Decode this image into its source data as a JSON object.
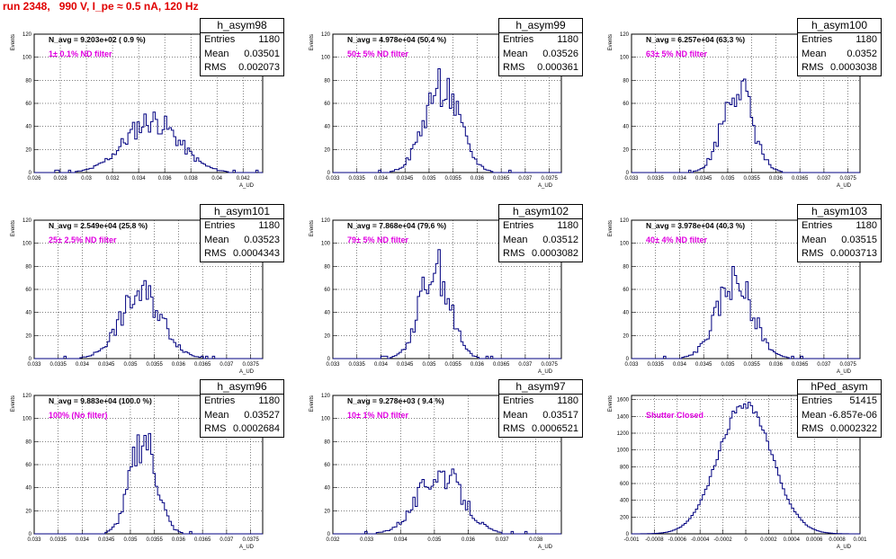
{
  "title": "run 2348,   990 V, I_pe ≈ 0.5 nA, 120 Hz",
  "colors": {
    "histogram": "#000080",
    "filter_label": "#e000e0",
    "title": "#e00000"
  },
  "chart_data": [
    {
      "type": "histogram",
      "hist_name": "h_asym98",
      "n_avg": "N_avg = 9.203e+02 ( 0.9 %)",
      "filter_label": "1± 0.1% ND filter",
      "stats": {
        "entries": "1180",
        "mean": "0.03501",
        "rms": "0.002073"
      },
      "xlabel": "A_UD",
      "ylabel": "Events",
      "xlim": [
        0.026,
        0.0435
      ],
      "ylim": [
        0,
        120
      ],
      "xticks": [
        "0.026",
        "0.028",
        "0.03",
        "0.032",
        "0.034",
        "0.036",
        "0.038",
        "0.04",
        "0.042"
      ],
      "xtick_values": [
        0.026,
        0.028,
        0.03,
        0.032,
        0.034,
        0.036,
        0.038,
        0.04,
        0.042
      ],
      "yticks": [
        0,
        20,
        40,
        60,
        80,
        100,
        120
      ],
      "shape": {
        "mean": 0.03501,
        "rms": 0.002073,
        "peak": 45,
        "seed": 11
      }
    },
    {
      "type": "histogram",
      "hist_name": "h_asym99",
      "n_avg": "N_avg = 4.978e+04 (50.4 %)",
      "filter_label": "50± 5% ND filter",
      "stats": {
        "entries": "1180",
        "mean": "0.03526",
        "rms": "0.000361"
      },
      "xlabel": "A_UD",
      "ylabel": "Events",
      "xlim": [
        0.033,
        0.03775
      ],
      "ylim": [
        0,
        120
      ],
      "xticks": [
        "0.033",
        "0.0335",
        "0.034",
        "0.0345",
        "0.035",
        "0.0355",
        "0.036",
        "0.0365",
        "0.037",
        "0.0375"
      ],
      "xtick_values": [
        0.033,
        0.0335,
        0.034,
        0.0345,
        0.035,
        0.0355,
        0.036,
        0.0365,
        0.037,
        0.0375
      ],
      "yticks": [
        0,
        20,
        40,
        60,
        80,
        100,
        120
      ],
      "shape": {
        "mean": 0.03526,
        "rms": 0.000361,
        "peak": 75,
        "seed": 22
      }
    },
    {
      "type": "histogram",
      "hist_name": "h_asym100",
      "n_avg": "N_avg = 6.257e+04 (63.3 %)",
      "filter_label": "63± 5% ND filter",
      "stats": {
        "entries": "1180",
        "mean": "0.0352",
        "rms": "0.0003038"
      },
      "xlabel": "A_UD",
      "ylabel": "Events",
      "xlim": [
        0.033,
        0.03775
      ],
      "ylim": [
        0,
        120
      ],
      "xticks": [
        "0.033",
        "0.0335",
        "0.034",
        "0.0345",
        "0.035",
        "0.0355",
        "0.036",
        "0.0365",
        "0.037",
        "0.0375"
      ],
      "xtick_values": [
        0.033,
        0.0335,
        0.034,
        0.0345,
        0.035,
        0.0355,
        0.036,
        0.0365,
        0.037,
        0.0375
      ],
      "yticks": [
        0,
        20,
        40,
        60,
        80,
        100,
        120
      ],
      "shape": {
        "mean": 0.0352,
        "rms": 0.0003038,
        "peak": 76,
        "seed": 33
      }
    },
    {
      "type": "histogram",
      "hist_name": "h_asym101",
      "n_avg": "N_avg = 2.549e+04 (25.8 %)",
      "filter_label": "25± 2.5% ND filter",
      "stats": {
        "entries": "1180",
        "mean": "0.03523",
        "rms": "0.0004343"
      },
      "xlabel": "A_UD",
      "ylabel": "Events",
      "xlim": [
        0.033,
        0.03775
      ],
      "ylim": [
        0,
        120
      ],
      "xticks": [
        "0.033",
        "0.0335",
        "0.034",
        "0.0345",
        "0.035",
        "0.0355",
        "0.036",
        "0.0365",
        "0.037",
        "0.0375"
      ],
      "xtick_values": [
        0.033,
        0.0335,
        0.034,
        0.0345,
        0.035,
        0.0355,
        0.036,
        0.0365,
        0.037,
        0.0375
      ],
      "yticks": [
        0,
        20,
        40,
        60,
        80,
        100,
        120
      ],
      "shape": {
        "mean": 0.03523,
        "rms": 0.0004343,
        "peak": 57,
        "seed": 44
      }
    },
    {
      "type": "histogram",
      "hist_name": "h_asym102",
      "n_avg": "N_avg = 7.868e+04 (79.6 %)",
      "filter_label": "79± 5% ND filter",
      "stats": {
        "entries": "1180",
        "mean": "0.03512",
        "rms": "0.0003082"
      },
      "xlabel": "A_UD",
      "ylabel": "Events",
      "xlim": [
        0.033,
        0.03775
      ],
      "ylim": [
        0,
        120
      ],
      "xticks": [
        "0.033",
        "0.0335",
        "0.034",
        "0.0345",
        "0.035",
        "0.0355",
        "0.036",
        "0.0365",
        "0.037",
        "0.0375"
      ],
      "xtick_values": [
        0.033,
        0.0335,
        0.034,
        0.0345,
        0.035,
        0.0355,
        0.036,
        0.0365,
        0.037,
        0.0375
      ],
      "yticks": [
        0,
        20,
        40,
        60,
        80,
        100,
        120
      ],
      "shape": {
        "mean": 0.03512,
        "rms": 0.0003082,
        "peak": 80,
        "seed": 55
      }
    },
    {
      "type": "histogram",
      "hist_name": "h_asym103",
      "n_avg": "N_avg = 3.978e+04 (40.3 %)",
      "filter_label": "40± 4% ND filter",
      "stats": {
        "entries": "1180",
        "mean": "0.03515",
        "rms": "0.0003713"
      },
      "xlabel": "A_UD",
      "ylabel": "Events",
      "xlim": [
        0.033,
        0.03775
      ],
      "ylim": [
        0,
        120
      ],
      "xticks": [
        "0.033",
        "0.0335",
        "0.034",
        "0.0345",
        "0.035",
        "0.0355",
        "0.036",
        "0.0365",
        "0.037",
        "0.0375"
      ],
      "xtick_values": [
        0.033,
        0.0335,
        0.034,
        0.0345,
        0.035,
        0.0355,
        0.036,
        0.0365,
        0.037,
        0.0375
      ],
      "yticks": [
        0,
        20,
        40,
        60,
        80,
        100,
        120
      ],
      "shape": {
        "mean": 0.03515,
        "rms": 0.0003713,
        "peak": 67,
        "seed": 66
      }
    },
    {
      "type": "histogram",
      "hist_name": "h_asym96",
      "n_avg": "N_avg = 9.883e+04 (100.0 %)",
      "filter_label": "100% (No filter)",
      "stats": {
        "entries": "1180",
        "mean": "0.03527",
        "rms": "0.0002684"
      },
      "xlabel": "A_UD",
      "ylabel": "Events",
      "xlim": [
        0.033,
        0.03775
      ],
      "ylim": [
        0,
        120
      ],
      "xticks": [
        "0.033",
        "0.0335",
        "0.034",
        "0.0345",
        "0.035",
        "0.0355",
        "0.036",
        "0.0365",
        "0.037",
        "0.0375"
      ],
      "xtick_values": [
        0.033,
        0.0335,
        0.034,
        0.0345,
        0.035,
        0.0355,
        0.036,
        0.0365,
        0.037,
        0.0375
      ],
      "yticks": [
        0,
        20,
        40,
        60,
        80,
        100,
        120
      ],
      "shape": {
        "mean": 0.03527,
        "rms": 0.0002684,
        "peak": 82,
        "seed": 77
      }
    },
    {
      "type": "histogram",
      "hist_name": "h_asym97",
      "n_avg": "N_avg = 9.278e+03 ( 9.4 %)",
      "filter_label": "10± 1% ND filter",
      "stats": {
        "entries": "1180",
        "mean": "0.03517",
        "rms": "0.0006521"
      },
      "xlabel": "A_UD",
      "ylabel": "Events",
      "xlim": [
        0.032,
        0.03875
      ],
      "ylim": [
        0,
        120
      ],
      "xticks": [
        "0.032",
        "0.033",
        "0.034",
        "0.035",
        "0.036",
        "0.037",
        "0.038"
      ],
      "xtick_values": [
        0.032,
        0.033,
        0.034,
        0.035,
        0.036,
        0.037,
        0.038
      ],
      "yticks": [
        0,
        20,
        40,
        60,
        80,
        100,
        120
      ],
      "shape": {
        "mean": 0.03517,
        "rms": 0.0006521,
        "peak": 53,
        "seed": 88
      }
    },
    {
      "type": "histogram",
      "hist_name": "hPed_asym",
      "n_avg": "",
      "filter_label": "Shutter Closed",
      "stats": {
        "entries": "51415",
        "mean": "-6.857e-06",
        "rms": "0.0002322"
      },
      "xlabel": "A_UD",
      "ylabel": "Events",
      "xlim": [
        -0.001,
        0.001
      ],
      "ylim": [
        0,
        1650
      ],
      "xticks": [
        "-0.001",
        "-0.0008",
        "-0.0006",
        "-0.0004",
        "-0.0002",
        "0",
        "0.0002",
        "0.0004",
        "0.0006",
        "0.0008",
        "0.001"
      ],
      "xtick_values": [
        -0.001,
        -0.0008,
        -0.0006,
        -0.0004,
        -0.0002,
        0,
        0.0002,
        0.0004,
        0.0006,
        0.0008,
        0.001
      ],
      "yticks": [
        0,
        200,
        400,
        600,
        800,
        1000,
        1200,
        1400,
        1600
      ],
      "shape": {
        "mean": -6.857e-06,
        "rms": 0.0002322,
        "peak": 1560,
        "seed": 99,
        "wide": true
      }
    }
  ]
}
